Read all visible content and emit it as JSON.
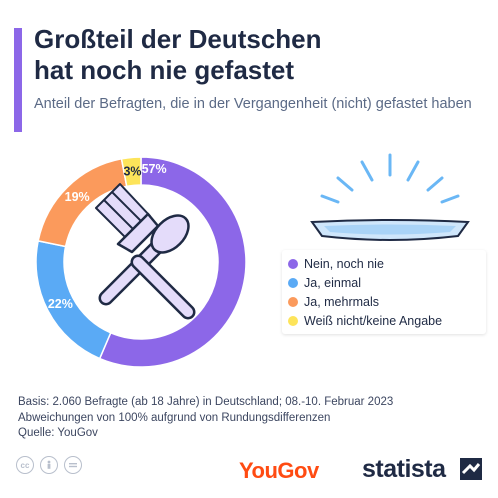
{
  "header": {
    "title_line1": "Großteil der Deutschen",
    "title_line2": "hat noch nie gefastet",
    "subtitle": "Anteil der Befragten, die in der Vergangenheit (nicht) gefastet haben"
  },
  "colors": {
    "accent": "#8c67e8",
    "title": "#1f2a44",
    "yougov": "#ff4b12"
  },
  "chart_data": {
    "type": "pie",
    "style": "donut",
    "title": "Großteil der Deutschen hat noch nie gefastet",
    "subtitle": "Anteil der Befragten, die in der Vergangenheit (nicht) gefastet haben",
    "categories": [
      "Nein, noch nie",
      "Ja, einmal",
      "Ja, mehrmals",
      "Weiß nicht/keine Angabe"
    ],
    "values": [
      57,
      22,
      19,
      3
    ],
    "labels": [
      "57%",
      "22%",
      "19%",
      "3%"
    ],
    "colors": [
      "#8c67e8",
      "#5aaaf5",
      "#fb9a5c",
      "#fde45a"
    ],
    "legend_placement": "right"
  },
  "footer": {
    "basis": "Basis: 2.060 Befragte (ab 18 Jahre) in Deutschland; 08.-10. Februar 2023",
    "note": "Abweichungen von 100% aufgrund von Rundungsdifferenzen",
    "source": "Quelle: YouGov"
  },
  "icons": [
    "fork-icon",
    "spoon-icon",
    "empty-plate-icon",
    "cc-license-icon",
    "cc-by-icon",
    "cc-nd-icon"
  ],
  "logos": {
    "yougov": "YouGov",
    "statista": "statista"
  }
}
